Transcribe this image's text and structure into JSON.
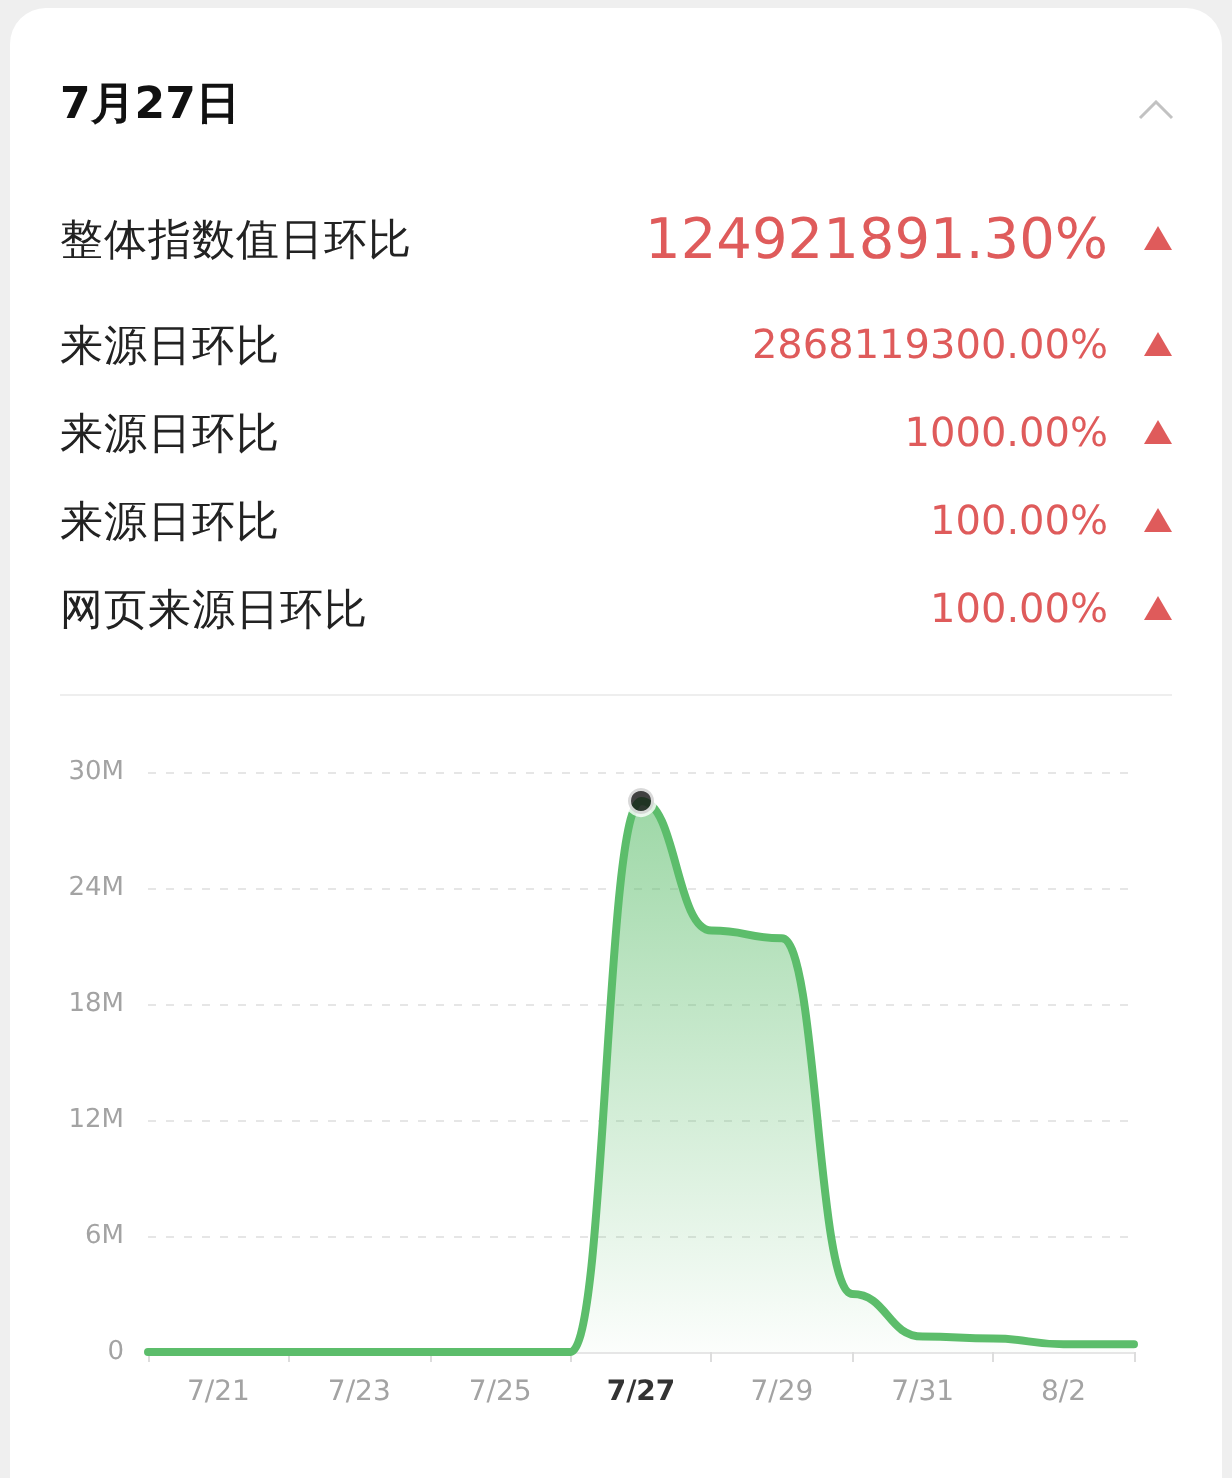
{
  "chart_data": {
    "type": "area",
    "title": "7月27日",
    "annotations": [
      "整体指数值日环比",
      "124921891.30%",
      "来源日环比",
      "2868119300.00%",
      "来源日环比",
      "1000.00%",
      "来源日环比",
      "100.00%",
      "网页来源日环比",
      "100.00%"
    ],
    "categories": [
      null,
      "7/21",
      null,
      "7/23",
      null,
      "7/25",
      null,
      "7/27",
      null,
      "7/29",
      null,
      "7/31",
      null,
      "8/2",
      null
    ],
    "marker": "none",
    "series": [
      {
        "color": "#5cbd6b",
        "values": [
          0,
          0,
          0,
          0,
          0,
          0,
          0,
          28500000,
          21800000,
          21400000,
          3000000,
          800000,
          700000,
          400000,
          400000
        ]
      },
      {
        "type": "scatter",
        "color": "#111111",
        "marker": "circle",
        "x": [
          "7/27"
        ],
        "values": [
          28500000
        ]
      }
    ],
    "ylim": [
      0,
      30000000
    ],
    "yticks": [
      0,
      {
        "value": 6000000,
        "label": "6M"
      },
      {
        "value": 12000000,
        "label": "12M"
      },
      {
        "value": 18000000,
        "label": "18M"
      },
      {
        "value": 24000000,
        "label": "24M"
      },
      {
        "value": 30000000,
        "label": "30M"
      }
    ],
    "grid": "y"
  }
}
